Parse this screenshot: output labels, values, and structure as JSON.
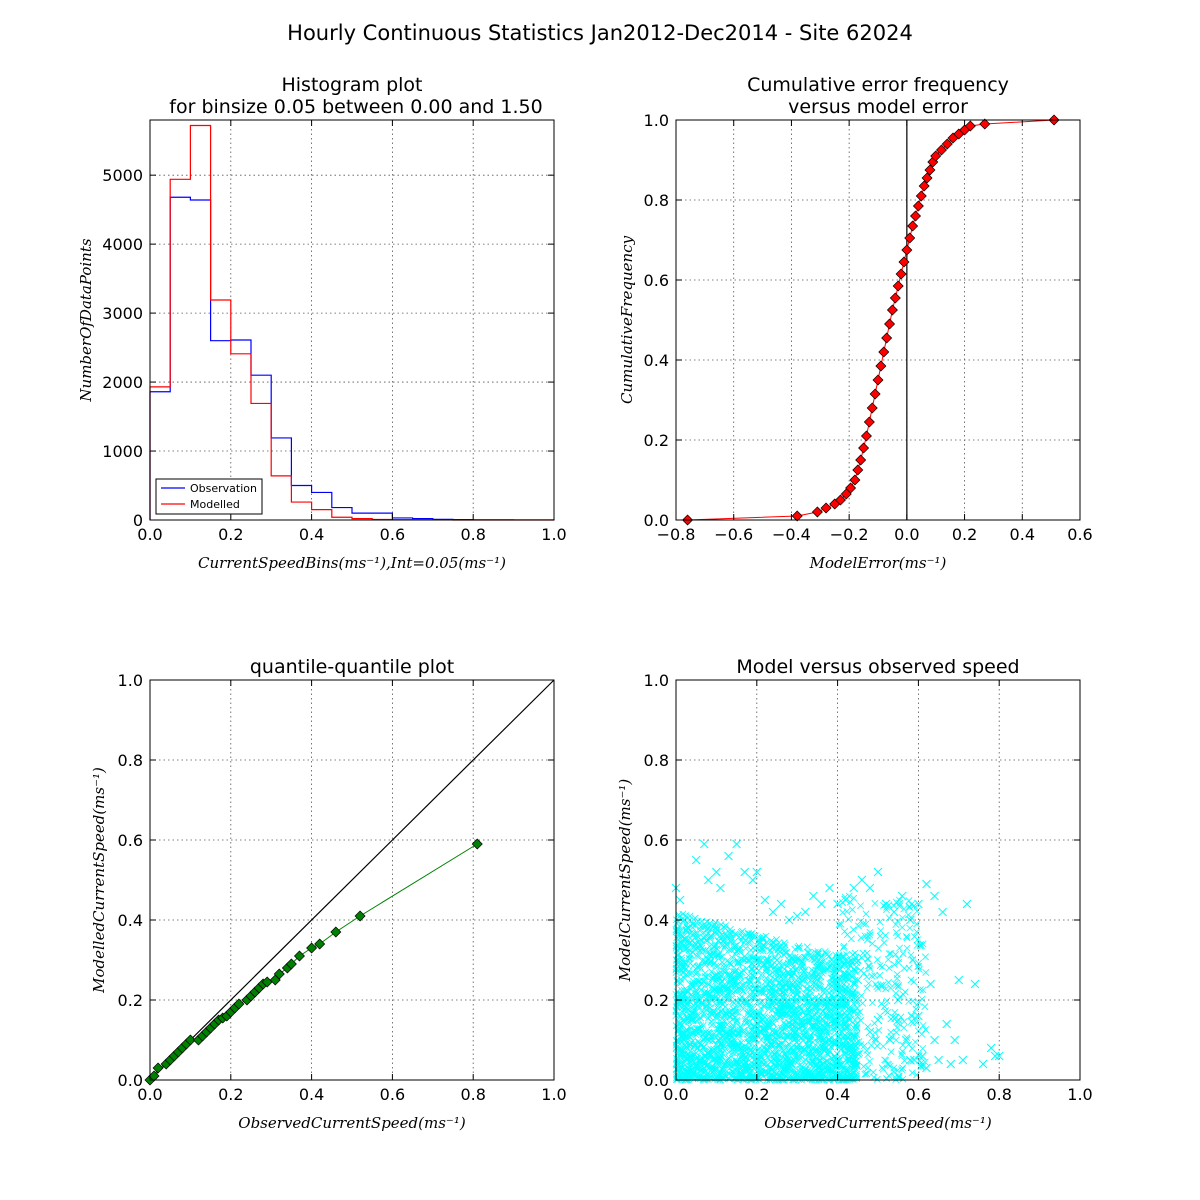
{
  "figure": {
    "title": "Hourly Continuous Statistics Jan2012-Dec2014 - Site 62024"
  },
  "colors": {
    "observation": "#0000ff",
    "modelled": "#ff0000",
    "error_marker": "#ff0000",
    "qq_marker": "#008000",
    "scatter": "#00ffff",
    "axes": "#000000",
    "grid": "#555555"
  },
  "chart_data": [
    {
      "id": "histogram",
      "type": "bar",
      "style": "step",
      "title": "Histogram plot",
      "subtitle": "for binsize 0.05 between 0.00 and 1.50",
      "xlabel": "CurrentSpeedBins(ms⁻¹),Int=0.05(ms⁻¹)",
      "ylabel": "NumberOfDataPoints",
      "xlim": [
        0,
        1.0
      ],
      "ylim": [
        0,
        5800
      ],
      "xticks": [
        "0.0",
        "0.2",
        "0.4",
        "0.6",
        "0.8",
        "1.0"
      ],
      "yticks": [
        "0",
        "1000",
        "2000",
        "3000",
        "4000",
        "5000"
      ],
      "grid": true,
      "legend_position": "bottom-left",
      "bin_edges": [
        0.0,
        0.05,
        0.1,
        0.15,
        0.2,
        0.25,
        0.3,
        0.35,
        0.4,
        0.45,
        0.5,
        0.55,
        0.6,
        0.65,
        0.7,
        0.75,
        0.8,
        0.85,
        0.9,
        0.95,
        1.0
      ],
      "series": [
        {
          "name": "Observation",
          "values": [
            1860,
            4680,
            4640,
            2600,
            2610,
            2100,
            1190,
            500,
            400,
            180,
            100,
            100,
            30,
            20,
            10,
            5,
            3,
            2,
            1,
            1
          ]
        },
        {
          "name": "Modelled",
          "values": [
            1930,
            4940,
            5720,
            3190,
            2410,
            1690,
            640,
            260,
            150,
            40,
            20,
            8,
            4,
            2,
            1,
            0,
            0,
            0,
            0,
            0
          ]
        }
      ]
    },
    {
      "id": "cumulative",
      "type": "line",
      "title": "Cumulative error frequency",
      "subtitle": "versus model error",
      "xlabel": "ModelError(ms⁻¹)",
      "ylabel": "CumulativeFrequency",
      "xlim": [
        -0.8,
        0.6
      ],
      "ylim": [
        0,
        1.0
      ],
      "xticks": [
        "−0.8",
        "−0.6",
        "−0.4",
        "−0.2",
        "0.0",
        "0.2",
        "0.4",
        "0.6"
      ],
      "yticks": [
        "0.0",
        "0.2",
        "0.4",
        "0.6",
        "0.8",
        "1.0"
      ],
      "grid": true,
      "vline_x": 0.0,
      "series": [
        {
          "name": "",
          "x": [
            -0.76,
            -0.38,
            -0.31,
            -0.28,
            -0.25,
            -0.23,
            -0.21,
            -0.195,
            -0.18,
            -0.17,
            -0.16,
            -0.15,
            -0.14,
            -0.13,
            -0.12,
            -0.11,
            -0.1,
            -0.09,
            -0.08,
            -0.07,
            -0.06,
            -0.05,
            -0.04,
            -0.03,
            -0.02,
            -0.01,
            0.0,
            0.01,
            0.02,
            0.03,
            0.04,
            0.05,
            0.06,
            0.07,
            0.08,
            0.09,
            0.1,
            0.12,
            0.14,
            0.16,
            0.18,
            0.2,
            0.22,
            0.27,
            0.51
          ],
          "y": [
            0.0,
            0.01,
            0.02,
            0.03,
            0.04,
            0.05,
            0.065,
            0.08,
            0.1,
            0.125,
            0.15,
            0.18,
            0.21,
            0.245,
            0.28,
            0.315,
            0.35,
            0.385,
            0.42,
            0.455,
            0.49,
            0.525,
            0.555,
            0.585,
            0.615,
            0.645,
            0.675,
            0.705,
            0.735,
            0.76,
            0.785,
            0.81,
            0.835,
            0.855,
            0.875,
            0.895,
            0.91,
            0.925,
            0.94,
            0.955,
            0.965,
            0.975,
            0.985,
            0.99,
            1.0
          ]
        }
      ]
    },
    {
      "id": "qq",
      "type": "line",
      "title": "quantile-quantile plot",
      "xlabel": "ObservedCurrentSpeed(ms⁻¹)",
      "ylabel": "ModelledCurrentSpeed(ms⁻¹)",
      "xlim": [
        0,
        1.0
      ],
      "ylim": [
        0,
        1.0
      ],
      "xticks": [
        "0.0",
        "0.2",
        "0.4",
        "0.6",
        "0.8",
        "1.0"
      ],
      "yticks": [
        "0.0",
        "0.2",
        "0.4",
        "0.6",
        "0.8",
        "1.0"
      ],
      "grid": true,
      "reference_line": [
        [
          0,
          0
        ],
        [
          1,
          1
        ]
      ],
      "series": [
        {
          "name": "",
          "x": [
            0.0,
            0.01,
            0.02,
            0.04,
            0.05,
            0.06,
            0.07,
            0.08,
            0.09,
            0.1,
            0.12,
            0.13,
            0.14,
            0.15,
            0.16,
            0.17,
            0.18,
            0.19,
            0.2,
            0.21,
            0.22,
            0.24,
            0.25,
            0.26,
            0.27,
            0.28,
            0.29,
            0.31,
            0.32,
            0.34,
            0.35,
            0.37,
            0.4,
            0.42,
            0.46,
            0.52,
            0.81
          ],
          "y": [
            0.0,
            0.01,
            0.03,
            0.04,
            0.05,
            0.06,
            0.07,
            0.08,
            0.09,
            0.1,
            0.1,
            0.11,
            0.12,
            0.13,
            0.14,
            0.15,
            0.155,
            0.16,
            0.17,
            0.18,
            0.19,
            0.2,
            0.21,
            0.22,
            0.23,
            0.24,
            0.245,
            0.25,
            0.265,
            0.28,
            0.29,
            0.31,
            0.33,
            0.34,
            0.37,
            0.41,
            0.59
          ]
        }
      ]
    },
    {
      "id": "scatter",
      "type": "scatter",
      "title": "Model versus observed speed",
      "xlabel": "ObservedCurrentSpeed(ms⁻¹)",
      "ylabel": "ModelCurrentSpeed(ms⁻¹)",
      "xlim": [
        0,
        1.0
      ],
      "ylim": [
        0,
        1.0
      ],
      "xticks": [
        "0.0",
        "0.2",
        "0.4",
        "0.6",
        "0.8",
        "1.0"
      ],
      "yticks": [
        "0.0",
        "0.2",
        "0.4",
        "0.6",
        "0.8",
        "1.0"
      ],
      "grid": true,
      "marker": "x",
      "series": [
        {
          "name": "",
          "x": [
            0.0,
            0.01,
            0.02,
            0.03,
            0.05,
            0.07,
            0.08,
            0.1,
            0.11,
            0.13,
            0.15,
            0.17,
            0.19,
            0.2,
            0.22,
            0.24,
            0.26,
            0.28,
            0.3,
            0.32,
            0.34,
            0.36,
            0.38,
            0.4,
            0.42,
            0.44,
            0.46,
            0.48,
            0.5,
            0.52,
            0.54,
            0.56,
            0.58,
            0.6,
            0.62,
            0.64,
            0.66,
            0.7,
            0.72,
            0.78,
            0.8,
            0.08,
            0.12,
            0.18,
            0.06,
            0.14,
            0.25,
            0.35,
            0.45,
            0.55,
            0.5,
            0.57,
            0.6,
            0.63,
            0.69,
            0.74,
            0.65,
            0.68,
            0.62,
            0.59,
            0.02,
            0.04,
            0.09,
            0.16,
            0.21,
            0.27,
            0.33,
            0.38,
            0.43,
            0.48,
            0.53,
            0.58,
            0.61,
            0.64,
            0.67,
            0.71,
            0.76,
            0.79
          ],
          "y": [
            0.48,
            0.45,
            0.4,
            0.38,
            0.55,
            0.59,
            0.5,
            0.52,
            0.48,
            0.56,
            0.59,
            0.52,
            0.5,
            0.52,
            0.45,
            0.42,
            0.44,
            0.4,
            0.41,
            0.42,
            0.46,
            0.44,
            0.48,
            0.44,
            0.45,
            0.48,
            0.5,
            0.48,
            0.52,
            0.44,
            0.42,
            0.46,
            0.4,
            0.44,
            0.49,
            0.46,
            0.42,
            0.25,
            0.44,
            0.08,
            0.06,
            0.3,
            0.35,
            0.3,
            0.2,
            0.25,
            0.3,
            0.28,
            0.25,
            0.2,
            0.15,
            0.1,
            0.16,
            0.24,
            0.1,
            0.24,
            0.05,
            0.04,
            0.03,
            0.05,
            0.1,
            0.15,
            0.05,
            0.08,
            0.12,
            0.1,
            0.18,
            0.2,
            0.15,
            0.12,
            0.1,
            0.05,
            0.06,
            0.1,
            0.14,
            0.05,
            0.04,
            0.06
          ]
        }
      ]
    }
  ]
}
